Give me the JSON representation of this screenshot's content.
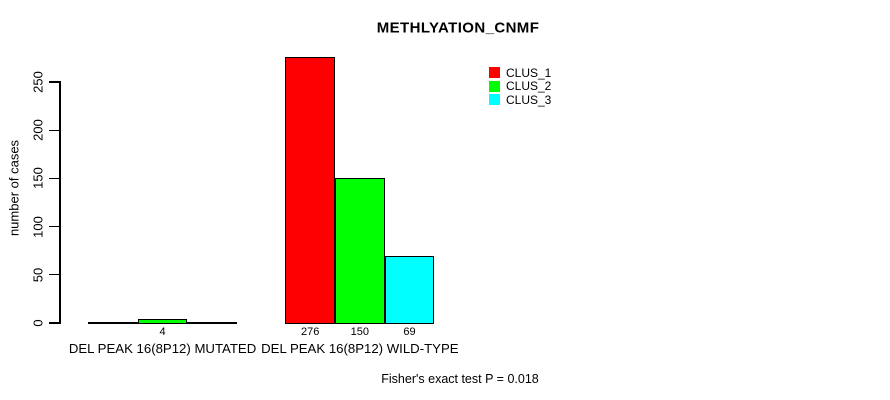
{
  "chart_data": {
    "type": "bar",
    "title": "METHLYATION_CNMF",
    "ylabel": "number of cases",
    "xlabel": "",
    "categories": [
      "DEL PEAK 16(8P12) MUTATED",
      "DEL PEAK 16(8P12) WILD-TYPE"
    ],
    "series": [
      {
        "name": "CLUS_1",
        "color": "#ff0000",
        "values": [
          0,
          276
        ]
      },
      {
        "name": "CLUS_2",
        "color": "#00ff00",
        "values": [
          4,
          150
        ]
      },
      {
        "name": "CLUS_3",
        "color": "#00ffff",
        "values": [
          0,
          69
        ]
      }
    ],
    "bar_value_labels": [
      [
        "",
        "4",
        ""
      ],
      [
        "276",
        "150",
        "69"
      ]
    ],
    "yticks": [
      0,
      50,
      100,
      150,
      200,
      250
    ],
    "ylim": [
      0,
      280
    ],
    "grid": false,
    "legend_position": "top-right",
    "annotation": "Fisher's exact test P = 0.018"
  }
}
